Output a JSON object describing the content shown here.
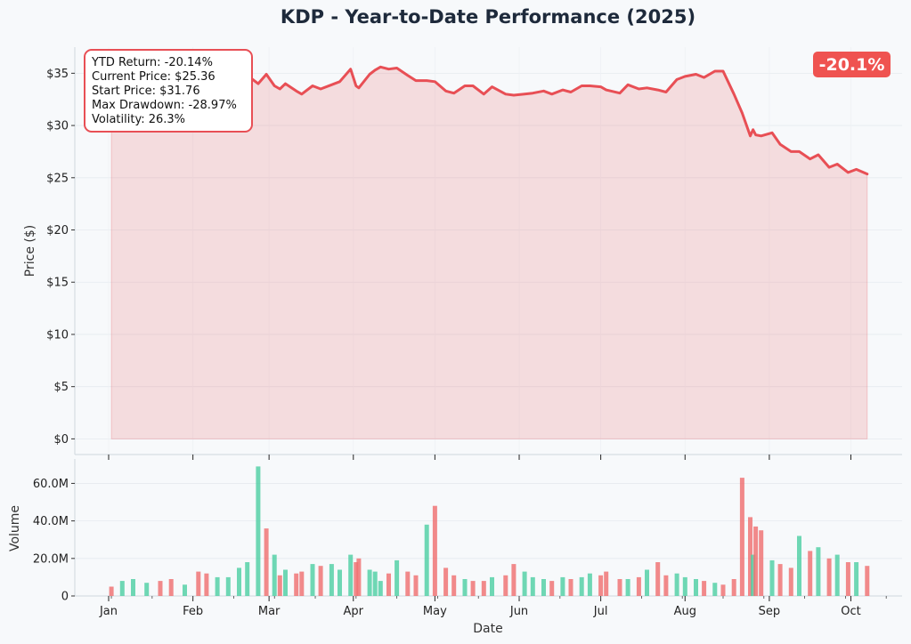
{
  "chart_data": [
    {
      "type": "area",
      "title": "KDP - Year-to-Date Performance (2025)",
      "xlabel": "",
      "ylabel": "Price ($)",
      "ylim": [
        -1.5,
        37.5
      ],
      "yticks": [
        0,
        5,
        10,
        15,
        20,
        25,
        30,
        35
      ],
      "ytick_labels": [
        "$0",
        "$5",
        "$10",
        "$15",
        "$20",
        "$25",
        "$30",
        "$35"
      ],
      "grid": true,
      "color": "#e84f55",
      "series": [
        {
          "x": [
            "2025-01-02",
            "2025-01-06",
            "2025-01-10",
            "2025-01-15",
            "2025-01-20",
            "2025-01-24",
            "2025-01-29",
            "2025-02-03",
            "2025-02-06",
            "2025-02-10",
            "2025-02-14",
            "2025-02-18",
            "2025-02-21",
            "2025-02-25",
            "2025-02-28",
            "2025-03-03",
            "2025-03-05",
            "2025-03-07",
            "2025-03-11",
            "2025-03-13",
            "2025-03-17",
            "2025-03-20",
            "2025-03-24",
            "2025-03-27",
            "2025-03-31",
            "2025-04-02",
            "2025-04-03",
            "2025-04-07",
            "2025-04-09",
            "2025-04-11",
            "2025-04-14",
            "2025-04-17",
            "2025-04-21",
            "2025-04-24",
            "2025-04-28",
            "2025-05-01",
            "2025-05-05",
            "2025-05-08",
            "2025-05-12",
            "2025-05-15",
            "2025-05-19",
            "2025-05-22",
            "2025-05-27",
            "2025-05-30",
            "2025-06-03",
            "2025-06-06",
            "2025-06-10",
            "2025-06-13",
            "2025-06-17",
            "2025-06-20",
            "2025-06-24",
            "2025-06-27",
            "2025-07-01",
            "2025-07-03",
            "2025-07-08",
            "2025-07-11",
            "2025-07-15",
            "2025-07-18",
            "2025-07-22",
            "2025-07-25",
            "2025-07-29",
            "2025-08-01",
            "2025-08-05",
            "2025-08-08",
            "2025-08-12",
            "2025-08-15",
            "2025-08-19",
            "2025-08-22",
            "2025-08-25",
            "2025-08-26",
            "2025-08-27",
            "2025-08-29",
            "2025-09-02",
            "2025-09-05",
            "2025-09-09",
            "2025-09-12",
            "2025-09-16",
            "2025-09-19",
            "2025-09-23",
            "2025-09-26",
            "2025-09-30",
            "2025-10-03",
            "2025-10-07"
          ],
          "values": [
            31.76,
            32.4,
            32.0,
            33.2,
            32.5,
            33.1,
            32.0,
            31.5,
            30.6,
            31.8,
            33.0,
            34.0,
            34.8,
            34.0,
            34.9,
            33.8,
            33.5,
            34.0,
            33.3,
            33.0,
            33.8,
            33.5,
            33.9,
            34.2,
            35.4,
            33.8,
            33.6,
            34.9,
            35.3,
            35.6,
            35.4,
            35.5,
            34.8,
            34.3,
            34.3,
            34.2,
            33.3,
            33.1,
            33.8,
            33.8,
            33.0,
            33.7,
            33.0,
            32.9,
            33.0,
            33.1,
            33.3,
            33.0,
            33.4,
            33.2,
            33.8,
            33.8,
            33.7,
            33.4,
            33.1,
            33.9,
            33.5,
            33.6,
            33.4,
            33.2,
            34.4,
            34.7,
            34.9,
            34.6,
            35.2,
            35.2,
            33.0,
            31.2,
            29.0,
            29.6,
            29.1,
            29.0,
            29.3,
            28.2,
            27.5,
            27.5,
            26.8,
            27.2,
            26.0,
            26.3,
            25.5,
            25.8,
            25.36
          ]
        }
      ],
      "annotations": {
        "stats_box": [
          "YTD Return: -20.14%",
          "Current Price: $25.36",
          "Start Price: $31.76",
          "Max Drawdown: -28.97%",
          "Volatility: 26.3%"
        ],
        "badge": "-20.1%",
        "badge_color": "#ef5350"
      }
    },
    {
      "type": "bar",
      "xlabel": "Date",
      "ylabel": "Volume",
      "ylim": [
        0,
        73
      ],
      "yticks": [
        0,
        20,
        40,
        60
      ],
      "ytick_labels": [
        "0",
        "20.0M",
        "40.0M",
        "60.0M"
      ],
      "xtick_labels": [
        "Jan",
        "Feb",
        "Mar",
        "Apr",
        "May",
        "Jun",
        "Jul",
        "Aug",
        "Sep",
        "Oct"
      ],
      "up_color": "#4fcfa3",
      "down_color": "#ef7070",
      "unit": "millions of shares",
      "series": [
        {
          "x": [
            "2025-01-02",
            "2025-01-06",
            "2025-01-10",
            "2025-01-15",
            "2025-01-20",
            "2025-01-24",
            "2025-01-29",
            "2025-02-03",
            "2025-02-06",
            "2025-02-10",
            "2025-02-14",
            "2025-02-18",
            "2025-02-21",
            "2025-02-25",
            "2025-02-28",
            "2025-03-03",
            "2025-03-05",
            "2025-03-07",
            "2025-03-11",
            "2025-03-13",
            "2025-03-17",
            "2025-03-20",
            "2025-03-24",
            "2025-03-27",
            "2025-03-31",
            "2025-04-02",
            "2025-04-03",
            "2025-04-07",
            "2025-04-09",
            "2025-04-11",
            "2025-04-14",
            "2025-04-17",
            "2025-04-21",
            "2025-04-24",
            "2025-04-28",
            "2025-05-01",
            "2025-05-05",
            "2025-05-08",
            "2025-05-12",
            "2025-05-15",
            "2025-05-19",
            "2025-05-22",
            "2025-05-27",
            "2025-05-30",
            "2025-06-03",
            "2025-06-06",
            "2025-06-10",
            "2025-06-13",
            "2025-06-17",
            "2025-06-20",
            "2025-06-24",
            "2025-06-27",
            "2025-07-01",
            "2025-07-03",
            "2025-07-08",
            "2025-07-11",
            "2025-07-15",
            "2025-07-18",
            "2025-07-22",
            "2025-07-25",
            "2025-07-29",
            "2025-08-01",
            "2025-08-05",
            "2025-08-08",
            "2025-08-12",
            "2025-08-15",
            "2025-08-19",
            "2025-08-22",
            "2025-08-25",
            "2025-08-26",
            "2025-08-27",
            "2025-08-29",
            "2025-09-02",
            "2025-09-05",
            "2025-09-09",
            "2025-09-12",
            "2025-09-16",
            "2025-09-19",
            "2025-09-23",
            "2025-09-26",
            "2025-09-30",
            "2025-10-03",
            "2025-10-07"
          ],
          "values": [
            5,
            8,
            9,
            7,
            8,
            9,
            6,
            13,
            12,
            10,
            10,
            15,
            18,
            69,
            36,
            22,
            11,
            14,
            12,
            13,
            17,
            16,
            17,
            14,
            22,
            18,
            20,
            14,
            13,
            8,
            12,
            19,
            13,
            11,
            38,
            48,
            15,
            11,
            9,
            8,
            8,
            10,
            11,
            17,
            13,
            10,
            9,
            8,
            10,
            9,
            10,
            12,
            11,
            13,
            9,
            9,
            10,
            14,
            18,
            11,
            12,
            10,
            9,
            8,
            7,
            6,
            9,
            63,
            42,
            22,
            37,
            35,
            19,
            17,
            15,
            32,
            24,
            26,
            20,
            22,
            18,
            18,
            16
          ],
          "direction": [
            "down",
            "up",
            "up",
            "up",
            "down",
            "down",
            "up",
            "down",
            "down",
            "up",
            "up",
            "up",
            "up",
            "up",
            "down",
            "up",
            "down",
            "up",
            "down",
            "down",
            "up",
            "down",
            "up",
            "up",
            "up",
            "down",
            "down",
            "up",
            "up",
            "up",
            "down",
            "up",
            "down",
            "down",
            "up",
            "down",
            "down",
            "down",
            "up",
            "down",
            "down",
            "up",
            "down",
            "down",
            "up",
            "up",
            "up",
            "down",
            "up",
            "down",
            "up",
            "up",
            "down",
            "down",
            "down",
            "up",
            "down",
            "up",
            "down",
            "down",
            "up",
            "up",
            "up",
            "down",
            "up",
            "down",
            "down",
            "down",
            "down",
            "up",
            "down",
            "down",
            "up",
            "down",
            "down",
            "up",
            "down",
            "up",
            "down",
            "up",
            "down",
            "up",
            "down"
          ]
        }
      ]
    }
  ]
}
